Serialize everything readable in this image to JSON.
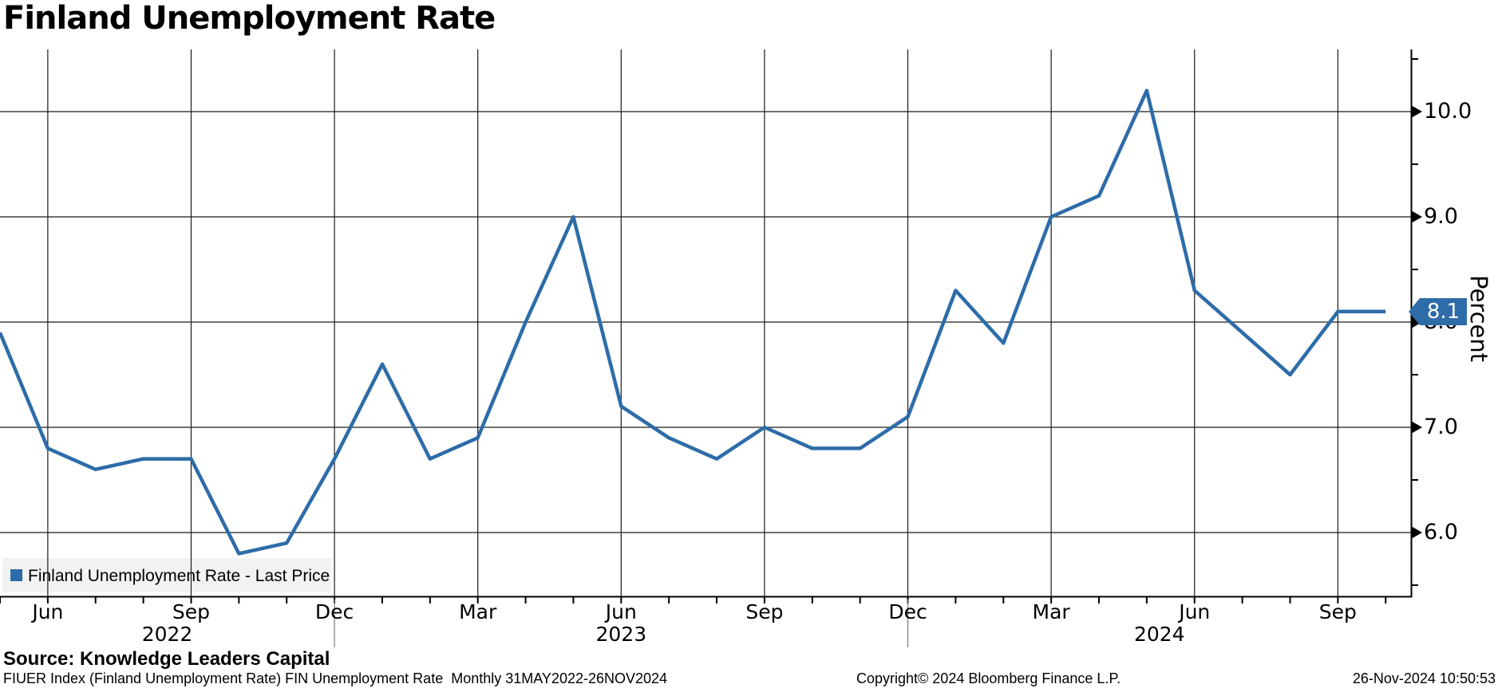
{
  "header": {
    "title": "Finland Unemployment Rate"
  },
  "legend": {
    "label": "Finland Unemployment Rate - Last Price",
    "swatch_color": "#2d6ca8"
  },
  "source": {
    "label": "Source: Knowledge Leaders Capital"
  },
  "footer": {
    "ticker_info": "FIUER Index (Finland Unemployment Rate) FIN Unemployment Rate  Monthly 31MAY2022-26NOV2024",
    "copyright": "Copyright© 2024 Bloomberg Finance L.P.",
    "timestamp": "26-Nov-2024 10:50:53"
  },
  "y_axis": {
    "title": "Percent",
    "major_ticks": [
      6.0,
      7.0,
      8.0,
      9.0,
      10.0
    ],
    "minor_ticks": [
      5.5,
      6.5,
      7.5,
      8.5,
      9.5,
      10.5
    ],
    "last_price_badge": "8.1",
    "badge_color": "#2d6ca8"
  },
  "x_axis": {
    "quarter_labels": [
      "Jun",
      "Sep",
      "Dec",
      "Mar",
      "Jun",
      "Sep",
      "Dec",
      "Mar",
      "Jun",
      "Sep"
    ],
    "year_labels": [
      "2022",
      "2023",
      "2024"
    ]
  },
  "chart_data": {
    "type": "line",
    "title": "Finland Unemployment Rate",
    "ylabel": "Percent",
    "ylim": [
      5.4,
      10.6
    ],
    "grid": true,
    "legend_position": "bottom-left",
    "x": [
      "2022-05",
      "2022-06",
      "2022-07",
      "2022-08",
      "2022-09",
      "2022-10",
      "2022-11",
      "2022-12",
      "2023-01",
      "2023-02",
      "2023-03",
      "2023-04",
      "2023-05",
      "2023-06",
      "2023-07",
      "2023-08",
      "2023-09",
      "2023-10",
      "2023-11",
      "2023-12",
      "2024-01",
      "2024-02",
      "2024-03",
      "2024-04",
      "2024-05",
      "2024-06",
      "2024-07",
      "2024-08",
      "2024-09",
      "2024-10"
    ],
    "series": [
      {
        "name": "Finland Unemployment Rate - Last Price",
        "color": "#2d6ca8",
        "values": [
          7.9,
          6.8,
          6.6,
          6.7,
          6.7,
          5.8,
          5.9,
          6.7,
          7.6,
          6.7,
          6.9,
          8.0,
          9.0,
          7.2,
          6.9,
          6.7,
          7.0,
          6.8,
          6.8,
          7.1,
          8.3,
          7.8,
          9.0,
          9.2,
          10.2,
          8.3,
          7.9,
          7.5,
          8.1,
          8.1
        ]
      }
    ],
    "last_value": 8.1
  }
}
